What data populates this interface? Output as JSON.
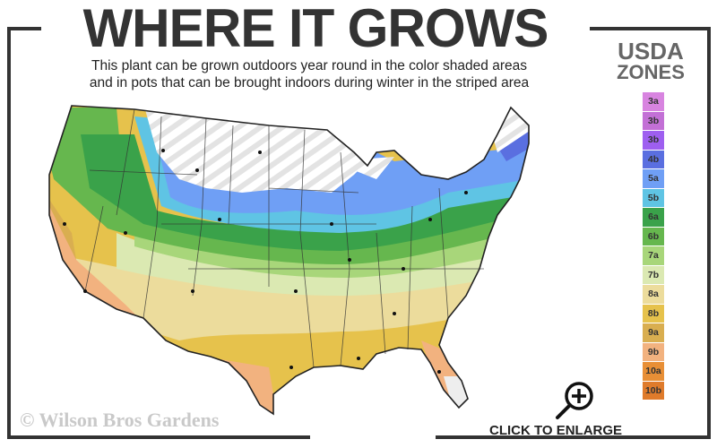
{
  "header": {
    "title": "WHERE IT GROWS",
    "subtitle_line1": "This plant can be grown outdoors year round in the color shaded areas",
    "subtitle_line2": "and in pots that can be brought indoors during winter in the striped area"
  },
  "legend": {
    "title_line1": "USDA",
    "title_line2": "ZONES",
    "zones": [
      {
        "label": "3a",
        "color": "#d884e0"
      },
      {
        "label": "3b",
        "color": "#c370d6"
      },
      {
        "label": "3b",
        "color": "#9e5ff0"
      },
      {
        "label": "4b",
        "color": "#5a6fe0"
      },
      {
        "label": "5a",
        "color": "#6f9ff5"
      },
      {
        "label": "5b",
        "color": "#5fc4e4"
      },
      {
        "label": "6a",
        "color": "#3aa24a"
      },
      {
        "label": "6b",
        "color": "#66b74e"
      },
      {
        "label": "7a",
        "color": "#a8d67a"
      },
      {
        "label": "7b",
        "color": "#dbe9b2"
      },
      {
        "label": "8a",
        "color": "#ecdc9c"
      },
      {
        "label": "8b",
        "color": "#e6c24c"
      },
      {
        "label": "9a",
        "color": "#d9ae50"
      },
      {
        "label": "9b",
        "color": "#f2b27f"
      },
      {
        "label": "10a",
        "color": "#e88f36"
      },
      {
        "label": "10b",
        "color": "#df7b2b"
      }
    ]
  },
  "map": {
    "striped_region": "indoor-pots",
    "outline_color": "#222222"
  },
  "footer": {
    "copyright": "© Wilson Bros Gardens",
    "enlarge_label": "CLICK TO ENLARGE",
    "enlarge_icon": "magnifier-plus-icon"
  }
}
